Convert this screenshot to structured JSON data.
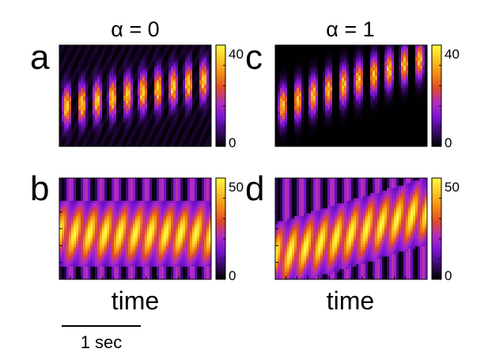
{
  "column_titles": [
    "α = 0",
    "α = 1"
  ],
  "x_axis_label": "time",
  "scale_bar": {
    "label": "1 sec"
  },
  "colormap": [
    "#000000",
    "#3a0a68",
    "#7a14d6",
    "#b32cc0",
    "#dd4a2a",
    "#f38a14",
    "#fbc628",
    "#fffb40"
  ],
  "chart_data": [
    {
      "panel": "a",
      "type": "heatmap",
      "column": "α = 0",
      "colorbar": {
        "range": [
          0,
          40
        ],
        "ticks": [
          "40",
          "0"
        ]
      },
      "pattern": {
        "n_bursts": 10,
        "drift": 0.28,
        "peak": 40,
        "background_level": 0.07,
        "smooth": false
      }
    },
    {
      "panel": "b",
      "type": "heatmap",
      "column": "α = 0",
      "colorbar": {
        "range": [
          0,
          50
        ],
        "ticks": [
          "50",
          "0"
        ]
      },
      "pattern": {
        "n_bursts": 10,
        "drift": 0.0,
        "peak": 50,
        "background_level": 0.0,
        "smooth": true
      }
    },
    {
      "panel": "c",
      "type": "heatmap",
      "column": "α = 1",
      "colorbar": {
        "range": [
          0,
          40
        ],
        "ticks": [
          "40",
          "0"
        ]
      },
      "pattern": {
        "n_bursts": 10,
        "drift": 0.5,
        "peak": 40,
        "background_level": 0.0,
        "smooth": false
      }
    },
    {
      "panel": "d",
      "type": "heatmap",
      "column": "α = 1",
      "colorbar": {
        "range": [
          0,
          50
        ],
        "ticks": [
          "50",
          "0"
        ]
      },
      "pattern": {
        "n_bursts": 10,
        "drift": 0.45,
        "peak": 50,
        "background_level": 0.0,
        "smooth": true
      }
    }
  ]
}
